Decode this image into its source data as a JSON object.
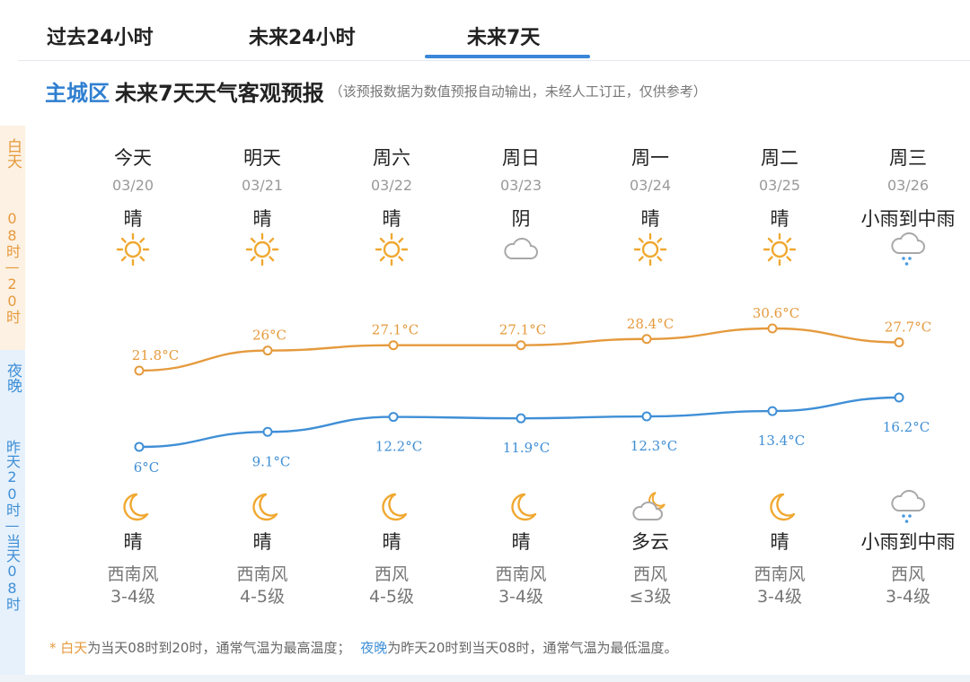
{
  "tabs": [
    {
      "label": "过去24小时"
    },
    {
      "label": "未来24小时"
    },
    {
      "label": "未来7天",
      "active": true
    }
  ],
  "heading": {
    "city": "主城区",
    "title": "未来7天天气客观预报",
    "note": "（该预报数据为数值预报自动输出，未经人工订正，仅供参考）"
  },
  "side": {
    "day_label": "白天",
    "day_range": "08时—20时",
    "night_label": "夜晚",
    "night_range": "昨天20时—当天08时"
  },
  "colors": {
    "day": "#e59a3d",
    "night": "#3f8fd6",
    "accent": "#3a86d8"
  },
  "days": [
    {
      "weekday": "今天",
      "date": "03/20",
      "day_weather": "晴",
      "day_icon": "sun-icon",
      "night_weather": "晴",
      "night_icon": "moon-icon",
      "wind_dir": "西南风",
      "wind_level": "3-4级"
    },
    {
      "weekday": "明天",
      "date": "03/21",
      "day_weather": "晴",
      "day_icon": "sun-icon",
      "night_weather": "晴",
      "night_icon": "moon-icon",
      "wind_dir": "西南风",
      "wind_level": "4-5级"
    },
    {
      "weekday": "周六",
      "date": "03/22",
      "day_weather": "晴",
      "day_icon": "sun-icon",
      "night_weather": "晴",
      "night_icon": "moon-icon",
      "wind_dir": "西风",
      "wind_level": "4-5级"
    },
    {
      "weekday": "周日",
      "date": "03/23",
      "day_weather": "阴",
      "day_icon": "cloud-icon",
      "night_weather": "晴",
      "night_icon": "moon-icon",
      "wind_dir": "西南风",
      "wind_level": "3-4级"
    },
    {
      "weekday": "周一",
      "date": "03/24",
      "day_weather": "晴",
      "day_icon": "sun-icon",
      "night_weather": "多云",
      "night_icon": "cloudy-night-icon",
      "wind_dir": "西风",
      "wind_level": "≤3级"
    },
    {
      "weekday": "周二",
      "date": "03/25",
      "day_weather": "晴",
      "day_icon": "sun-icon",
      "night_weather": "晴",
      "night_icon": "moon-icon",
      "wind_dir": "西南风",
      "wind_level": "3-4级"
    },
    {
      "weekday": "周三",
      "date": "03/26",
      "day_weather": "小雨到中雨",
      "day_icon": "rain-icon",
      "night_weather": "小雨到中雨",
      "night_icon": "rain-icon",
      "wind_dir": "西风",
      "wind_level": "3-4级"
    }
  ],
  "chart_data": {
    "type": "line",
    "categories": [
      "03/20",
      "03/21",
      "03/22",
      "03/23",
      "03/24",
      "03/25",
      "03/26"
    ],
    "series": [
      {
        "values": [
          21.8,
          26,
          27.1,
          27.1,
          28.4,
          30.6,
          27.7
        ],
        "labels": [
          "21.8°C",
          "26°C",
          "27.1°C",
          "27.1°C",
          "28.4°C",
          "30.6°C",
          "27.7°C"
        ],
        "color": "#e59a3d"
      },
      {
        "values": [
          6,
          9.1,
          12.2,
          11.9,
          12.3,
          13.4,
          16.2
        ],
        "labels": [
          "6°C",
          "9.1°C",
          "12.2°C",
          "11.9°C",
          "12.3°C",
          "13.4°C",
          "16.2°C"
        ],
        "color": "#3f8fd6"
      }
    ],
    "grid": false
  },
  "footnote": {
    "star": "*",
    "day_term": "白天",
    "day_text": "为当天08时到20时，通常气温为最高温度；",
    "night_term": "夜晚",
    "night_text": "为昨天20时到当天08时，通常气温为最低温度。"
  }
}
